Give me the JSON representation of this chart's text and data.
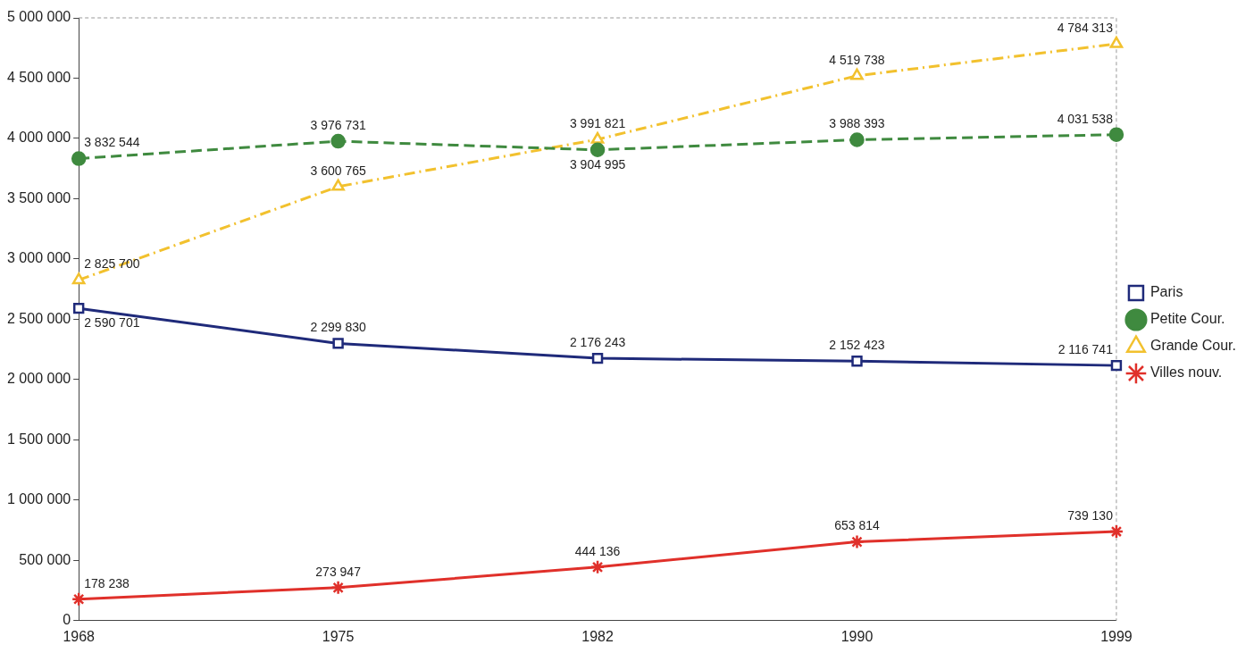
{
  "chart_data": {
    "type": "line",
    "categories": [
      "1968",
      "1975",
      "1982",
      "1990",
      "1999"
    ],
    "series": [
      {
        "name": "Paris",
        "color": "#1f2a7a",
        "values": [
          2590701,
          2299830,
          2176243,
          2152423,
          2116741
        ],
        "marker": "square",
        "line_style": "solid"
      },
      {
        "name": "Petite Cour.",
        "color": "#3f8a3f",
        "values": [
          3832544,
          3976731,
          3904995,
          3988393,
          4031538
        ],
        "marker": "circle",
        "line_style": "dashed"
      },
      {
        "name": "Grande Cour.",
        "color": "#f2c12e",
        "values": [
          2825700,
          3600765,
          3991821,
          4519738,
          4784313
        ],
        "marker": "triangle",
        "line_style": "dashdot"
      },
      {
        "name": "Villes nouv.",
        "color": "#e0302a",
        "values": [
          178238,
          273947,
          444136,
          653814,
          739130
        ],
        "marker": "cross",
        "line_style": "solid"
      }
    ],
    "ylim": [
      0,
      5000000
    ],
    "yticks": [
      0,
      500000,
      1000000,
      1500000,
      2000000,
      2500000,
      3000000,
      3500000,
      4000000,
      4500000,
      5000000
    ],
    "grid": false,
    "legend": "right",
    "data_labels": true
  }
}
